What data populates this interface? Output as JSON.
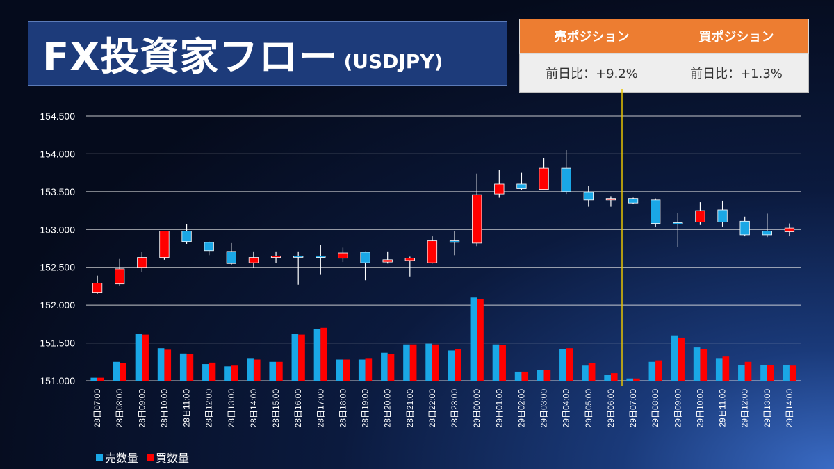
{
  "header": {
    "title": "FX投資家フロー",
    "pair": "(USDJPY)"
  },
  "positions": {
    "sell_header": "売ポジション",
    "buy_header": "買ポジション",
    "sell_value": "前日比：+9.2%",
    "buy_value": "前日比：+1.3%"
  },
  "colors": {
    "sell": "#1aa7e6",
    "buy": "#ff0000",
    "grid": "#e6e6e6",
    "marker": "#e8c400"
  },
  "chart_data": {
    "type": "candlestick+bar",
    "ylim": [
      151.0,
      154.5
    ],
    "yticks": [
      "151.000",
      "151.500",
      "152.000",
      "152.500",
      "153.000",
      "153.500",
      "154.000",
      "154.500"
    ],
    "ytick_values": [
      151.0,
      151.5,
      152.0,
      152.5,
      153.0,
      153.5,
      154.0,
      154.5
    ],
    "categories": [
      "28日07:00",
      "28日08:00",
      "28日09:00",
      "28日10:00",
      "28日11:00",
      "28日12:00",
      "28日13:00",
      "28日14:00",
      "28日15:00",
      "28日16:00",
      "28日17:00",
      "28日18:00",
      "28日19:00",
      "28日20:00",
      "28日21:00",
      "28日22:00",
      "28日23:00",
      "29日00:00",
      "29日01:00",
      "29日02:00",
      "29日03:00",
      "29日04:00",
      "29日05:00",
      "29日06:00",
      "29日07:00",
      "29日08:00",
      "29日09:00",
      "29日10:00",
      "29日11:00",
      "29日12:00",
      "29日13:00",
      "29日14:00"
    ],
    "ohlc": [
      [
        152.17,
        152.39,
        152.15,
        152.29
      ],
      [
        152.28,
        152.61,
        152.26,
        152.48
      ],
      [
        152.5,
        152.7,
        152.44,
        152.63
      ],
      [
        152.63,
        152.98,
        152.6,
        152.98
      ],
      [
        152.98,
        153.07,
        152.81,
        152.84
      ],
      [
        152.83,
        152.84,
        152.66,
        152.72
      ],
      [
        152.71,
        152.82,
        152.53,
        152.55
      ],
      [
        152.56,
        152.71,
        152.49,
        152.63
      ],
      [
        152.63,
        152.71,
        152.56,
        152.65
      ],
      [
        152.65,
        152.71,
        152.27,
        152.64
      ],
      [
        152.65,
        152.8,
        152.4,
        152.63
      ],
      [
        152.62,
        152.76,
        152.57,
        152.69
      ],
      [
        152.7,
        152.71,
        152.33,
        152.56
      ],
      [
        152.57,
        152.71,
        152.55,
        152.6
      ],
      [
        152.59,
        152.64,
        152.38,
        152.62
      ],
      [
        152.56,
        152.91,
        152.55,
        152.85
      ],
      [
        152.85,
        152.98,
        152.66,
        152.83
      ],
      [
        152.82,
        153.74,
        152.78,
        153.46
      ],
      [
        153.47,
        153.79,
        153.42,
        153.6
      ],
      [
        153.6,
        153.75,
        153.52,
        153.54
      ],
      [
        153.53,
        153.94,
        153.52,
        153.81
      ],
      [
        153.81,
        154.05,
        153.47,
        153.5
      ],
      [
        153.49,
        153.58,
        153.3,
        153.39
      ],
      [
        153.39,
        153.44,
        153.3,
        153.41
      ],
      [
        153.41,
        153.42,
        153.34,
        153.35
      ],
      [
        153.39,
        153.41,
        153.03,
        153.08
      ],
      [
        153.09,
        153.22,
        152.77,
        153.08
      ],
      [
        153.1,
        153.36,
        153.06,
        153.25
      ],
      [
        153.26,
        153.38,
        153.04,
        153.1
      ],
      [
        153.11,
        153.17,
        152.91,
        152.93
      ],
      [
        152.98,
        153.21,
        152.9,
        152.93
      ],
      [
        152.97,
        153.08,
        152.91,
        153.02
      ]
    ],
    "sell_volume": [
      151.04,
      151.25,
      151.62,
      151.43,
      151.36,
      151.22,
      151.19,
      151.3,
      151.25,
      151.62,
      151.68,
      151.28,
      151.28,
      151.37,
      151.48,
      151.49,
      151.4,
      152.1,
      151.48,
      151.12,
      151.14,
      151.42,
      151.2,
      151.08,
      151.03,
      151.25,
      151.6,
      151.44,
      151.3,
      151.21,
      151.21,
      151.21
    ],
    "buy_volume": [
      151.04,
      151.23,
      151.61,
      151.41,
      151.35,
      151.24,
      151.2,
      151.28,
      151.25,
      151.61,
      151.7,
      151.28,
      151.3,
      151.35,
      151.48,
      151.48,
      151.42,
      152.08,
      151.47,
      151.12,
      151.14,
      151.43,
      151.23,
      151.1,
      151.03,
      151.27,
      151.57,
      151.42,
      151.32,
      151.25,
      151.21,
      151.2
    ],
    "marker_after": "29日06:00",
    "legend": [
      "売数量",
      "買数量"
    ]
  }
}
